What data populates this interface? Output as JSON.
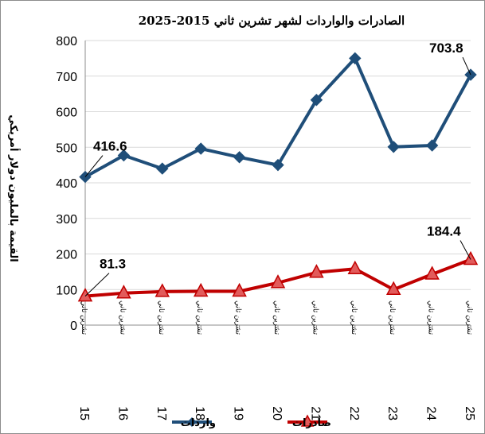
{
  "chart_data": {
    "type": "line",
    "title": "الصادرات والواردات لشهر تشرين ثاني 2015-2025",
    "ylabel": "القيمة بالمليون دولار أمريكي",
    "xlabel": "",
    "ylim": [
      0,
      800
    ],
    "yticks": [
      "0",
      "100",
      "200",
      "300",
      "400",
      "500",
      "600",
      "700",
      "800"
    ],
    "categories": [
      "15",
      "16",
      "17",
      "18",
      "19",
      "20",
      "21",
      "22",
      "23",
      "24",
      "25"
    ],
    "category_label": "تشرين ثاني",
    "grid": true,
    "legend_position": "bottom",
    "series": [
      {
        "name": "واردات",
        "color": "#1f4e79",
        "marker": "diamond",
        "values": [
          416.6,
          477,
          440,
          496,
          472,
          450,
          633,
          750,
          501,
          505,
          703.8
        ]
      },
      {
        "name": "صادرات",
        "color": "#c00000",
        "marker": "triangle",
        "values": [
          81.3,
          90,
          94,
          95,
          95,
          119,
          148,
          158,
          100,
          143,
          184.4
        ]
      }
    ],
    "data_labels": [
      {
        "series": 0,
        "index": 0,
        "text": "416.6"
      },
      {
        "series": 0,
        "index": 10,
        "text": "703.8"
      },
      {
        "series": 1,
        "index": 0,
        "text": "81.3"
      },
      {
        "series": 1,
        "index": 10,
        "text": "184.4"
      }
    ]
  }
}
